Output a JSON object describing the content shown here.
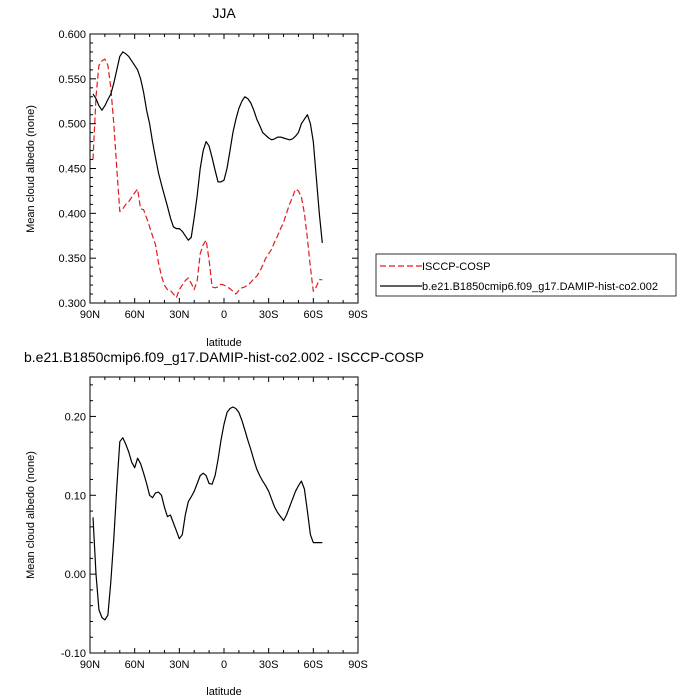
{
  "chart_data": [
    {
      "type": "line",
      "title": "JJA",
      "xlabel": "latitude",
      "ylabel": "Mean cloud albedo (none)",
      "xlim": [
        90,
        -90
      ],
      "ylim": [
        0.3,
        0.6
      ],
      "x_ticks": [
        90,
        60,
        30,
        0,
        -30,
        -60,
        -90
      ],
      "x_tick_labels": [
        "90N",
        "60N",
        "30N",
        "0",
        "30S",
        "60S",
        "90S"
      ],
      "y_ticks": [
        0.3,
        0.35,
        0.4,
        0.45,
        0.5,
        0.55,
        0.6
      ],
      "y_tick_labels": [
        "0.300",
        "0.350",
        "0.400",
        "0.450",
        "0.500",
        "0.550",
        "0.600"
      ],
      "legend_position": "right",
      "series": [
        {
          "name": "ISCCP-COSP",
          "color": "#e31a1c",
          "dash": true,
          "x": [
            88,
            86,
            84,
            82,
            80,
            78,
            76,
            74,
            72,
            70,
            68,
            66,
            64,
            62,
            60,
            58,
            56,
            54,
            52,
            50,
            48,
            46,
            44,
            42,
            40,
            38,
            36,
            34,
            32,
            30,
            28,
            26,
            24,
            22,
            20,
            18,
            16,
            14,
            12,
            10,
            8,
            6,
            4,
            2,
            0,
            -2,
            -4,
            -6,
            -8,
            -10,
            -12,
            -14,
            -16,
            -18,
            -20,
            -22,
            -24,
            -26,
            -28,
            -30,
            -32,
            -34,
            -36,
            -38,
            -40,
            -42,
            -44,
            -46,
            -48,
            -50,
            -52,
            -54,
            -56,
            -58,
            -60,
            -62,
            -64,
            -66
          ],
          "y": [
            0.46,
            0.53,
            0.565,
            0.57,
            0.572,
            0.565,
            0.54,
            0.5,
            0.45,
            0.402,
            0.405,
            0.41,
            0.413,
            0.418,
            0.423,
            0.427,
            0.405,
            0.404,
            0.395,
            0.385,
            0.375,
            0.365,
            0.345,
            0.33,
            0.32,
            0.315,
            0.314,
            0.31,
            0.306,
            0.315,
            0.32,
            0.325,
            0.328,
            0.322,
            0.315,
            0.325,
            0.355,
            0.365,
            0.37,
            0.348,
            0.318,
            0.317,
            0.318,
            0.321,
            0.32,
            0.318,
            0.316,
            0.313,
            0.31,
            0.314,
            0.317,
            0.318,
            0.32,
            0.323,
            0.327,
            0.33,
            0.335,
            0.342,
            0.35,
            0.355,
            0.36,
            0.368,
            0.375,
            0.383,
            0.39,
            0.4,
            0.41,
            0.418,
            0.427,
            0.425,
            0.418,
            0.4,
            0.372,
            0.34,
            0.313,
            0.318,
            0.326,
            0.326
          ]
        },
        {
          "name": "b.e21.B1850cmip6.f09_g17.DAMIP-hist-co2.002",
          "color": "#000000",
          "dash": false,
          "x": [
            88,
            86,
            84,
            82,
            80,
            78,
            76,
            74,
            72,
            70,
            68,
            66,
            64,
            62,
            60,
            58,
            56,
            54,
            52,
            50,
            48,
            46,
            44,
            42,
            40,
            38,
            36,
            34,
            32,
            30,
            28,
            26,
            24,
            22,
            20,
            18,
            16,
            14,
            12,
            10,
            8,
            6,
            4,
            2,
            0,
            -2,
            -4,
            -6,
            -8,
            -10,
            -12,
            -14,
            -16,
            -18,
            -20,
            -22,
            -24,
            -26,
            -28,
            -30,
            -32,
            -34,
            -36,
            -38,
            -40,
            -42,
            -44,
            -46,
            -48,
            -50,
            -52,
            -54,
            -56,
            -58,
            -60,
            -62,
            -64,
            -66
          ],
          "y": [
            0.533,
            0.528,
            0.52,
            0.515,
            0.52,
            0.527,
            0.533,
            0.545,
            0.56,
            0.575,
            0.58,
            0.578,
            0.575,
            0.57,
            0.565,
            0.56,
            0.55,
            0.535,
            0.515,
            0.5,
            0.48,
            0.462,
            0.445,
            0.432,
            0.42,
            0.408,
            0.395,
            0.385,
            0.383,
            0.383,
            0.38,
            0.375,
            0.37,
            0.373,
            0.395,
            0.42,
            0.45,
            0.47,
            0.48,
            0.475,
            0.462,
            0.448,
            0.435,
            0.435,
            0.437,
            0.45,
            0.47,
            0.49,
            0.505,
            0.517,
            0.525,
            0.53,
            0.528,
            0.523,
            0.515,
            0.505,
            0.498,
            0.49,
            0.487,
            0.484,
            0.482,
            0.483,
            0.485,
            0.485,
            0.484,
            0.483,
            0.482,
            0.483,
            0.486,
            0.49,
            0.5,
            0.505,
            0.51,
            0.5,
            0.48,
            0.44,
            0.4,
            0.367
          ]
        }
      ]
    },
    {
      "type": "line",
      "title": "b.e21.B1850cmip6.f09_g17.DAMIP-hist-co2.002 - ISCCP-COSP",
      "xlabel": "latitude",
      "ylabel": "Mean cloud albedo (none)",
      "xlim": [
        90,
        -90
      ],
      "ylim": [
        -0.1,
        0.25
      ],
      "x_ticks": [
        90,
        60,
        30,
        0,
        -30,
        -60,
        -90
      ],
      "x_tick_labels": [
        "90N",
        "60N",
        "30N",
        "0",
        "30S",
        "60S",
        "90S"
      ],
      "y_ticks": [
        -0.1,
        0.0,
        0.1,
        0.2
      ],
      "y_tick_labels": [
        "-0.10",
        "0.00",
        "0.10",
        "0.20"
      ],
      "series": [
        {
          "color": "#000000",
          "dash": false,
          "x": [
            88,
            86,
            84,
            82,
            80,
            78,
            76,
            74,
            72,
            70,
            68,
            66,
            64,
            62,
            60,
            58,
            56,
            54,
            52,
            50,
            48,
            46,
            44,
            42,
            40,
            38,
            36,
            34,
            32,
            30,
            28,
            26,
            24,
            22,
            20,
            18,
            16,
            14,
            12,
            10,
            8,
            6,
            4,
            2,
            0,
            -2,
            -4,
            -6,
            -8,
            -10,
            -12,
            -14,
            -16,
            -18,
            -20,
            -22,
            -24,
            -26,
            -28,
            -30,
            -32,
            -34,
            -36,
            -38,
            -40,
            -42,
            -44,
            -46,
            -48,
            -50,
            -52,
            -54,
            -56,
            -58,
            -60,
            -62,
            -64,
            -66
          ],
          "y": [
            0.072,
            0.0,
            -0.045,
            -0.055,
            -0.058,
            -0.052,
            -0.01,
            0.045,
            0.11,
            0.168,
            0.173,
            0.165,
            0.155,
            0.142,
            0.135,
            0.147,
            0.14,
            0.128,
            0.115,
            0.1,
            0.097,
            0.103,
            0.104,
            0.1,
            0.085,
            0.073,
            0.075,
            0.065,
            0.055,
            0.045,
            0.05,
            0.075,
            0.092,
            0.098,
            0.105,
            0.115,
            0.125,
            0.128,
            0.125,
            0.115,
            0.114,
            0.125,
            0.145,
            0.17,
            0.19,
            0.205,
            0.21,
            0.212,
            0.21,
            0.205,
            0.195,
            0.183,
            0.17,
            0.158,
            0.145,
            0.133,
            0.125,
            0.118,
            0.112,
            0.105,
            0.095,
            0.085,
            0.078,
            0.073,
            0.068,
            0.075,
            0.085,
            0.095,
            0.105,
            0.112,
            0.118,
            0.108,
            0.08,
            0.05,
            0.04,
            0.04,
            0.04,
            0.04
          ]
        }
      ]
    }
  ]
}
